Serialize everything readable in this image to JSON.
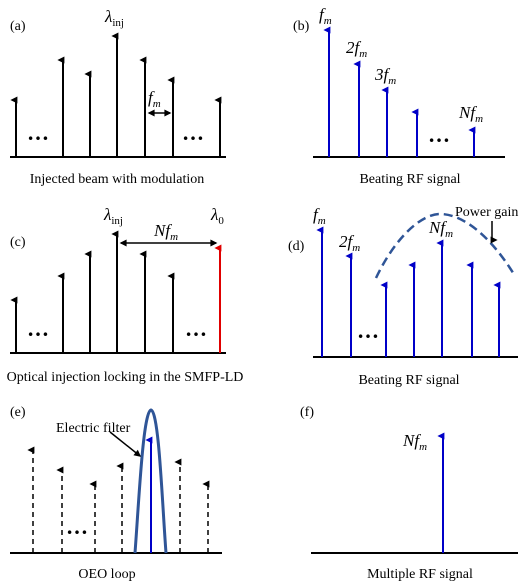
{
  "colors": {
    "black": "#000000",
    "blue": "#0000c8",
    "red": "#e00000",
    "curve": "#2f5597"
  },
  "panel_a": {
    "label": "(a)",
    "caption": "Injected beam with modulation",
    "lambda_base": "λ",
    "lambda_sub": "inj",
    "fm_base": "f",
    "fm_sub": "m",
    "dots_left": "…",
    "dots_right": "…"
  },
  "panel_b": {
    "label": "(b)",
    "caption": "Beating RF signal",
    "l1_base": "f",
    "l1_sub": "m",
    "l2_base": "2f",
    "l2_sub": "m",
    "l3_base": "3f",
    "l3_sub": "m",
    "l4_base": "Nf",
    "l4_sub": "m",
    "dots": "…"
  },
  "panel_c": {
    "label": "(c)",
    "caption": "Optical injection locking in the SMFP-LD",
    "lambda_base": "λ",
    "lambda_sub": "inj",
    "lambda0_base": "λ",
    "lambda0_sub": "0",
    "nfm_base": "Nf",
    "nfm_sub": "m",
    "dots_left": "…",
    "dots_right": "…"
  },
  "panel_d": {
    "label": "(d)",
    "caption": "Beating RF signal",
    "power_gain": "Power gain",
    "l1_base": "f",
    "l1_sub": "m",
    "l2_base": "2f",
    "l2_sub": "m",
    "l3_base": "Nf",
    "l3_sub": "m",
    "dots": "…"
  },
  "panel_e": {
    "label": "(e)",
    "caption": "OEO loop",
    "filter_label": "Electric filter",
    "dots": "…"
  },
  "panel_f": {
    "label": "(f)",
    "caption": "Multiple RF signal",
    "l1_base": "Nf",
    "l1_sub": "m"
  }
}
